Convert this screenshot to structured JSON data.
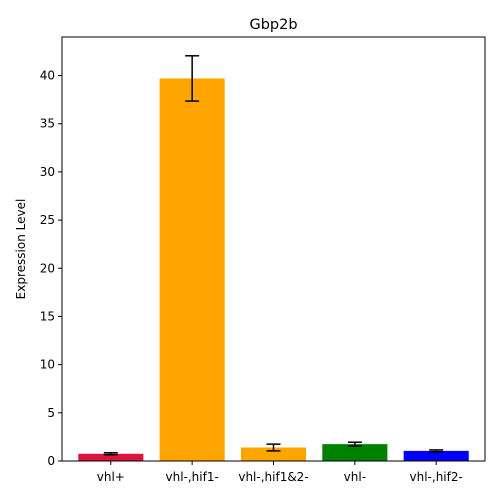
{
  "chart_data": {
    "type": "bar",
    "title": "Gbp2b",
    "xlabel": "",
    "ylabel": "Expression Level",
    "categories": [
      "vhl+",
      "vhl-,hif1-",
      "vhl-,hif1&2-",
      "vhl-",
      "vhl-,hif2-"
    ],
    "values": [
      0.75,
      39.7,
      1.4,
      1.75,
      1.05
    ],
    "errors": [
      0.1,
      2.35,
      0.35,
      0.2,
      0.1
    ],
    "colors": [
      "#dc143c",
      "#ffa500",
      "#ffa500",
      "#008000",
      "#0000ff"
    ],
    "ylim": [
      0,
      44
    ],
    "yticks": [
      0,
      5,
      10,
      15,
      20,
      25,
      30,
      35,
      40
    ],
    "grid": false,
    "legend": "none"
  }
}
